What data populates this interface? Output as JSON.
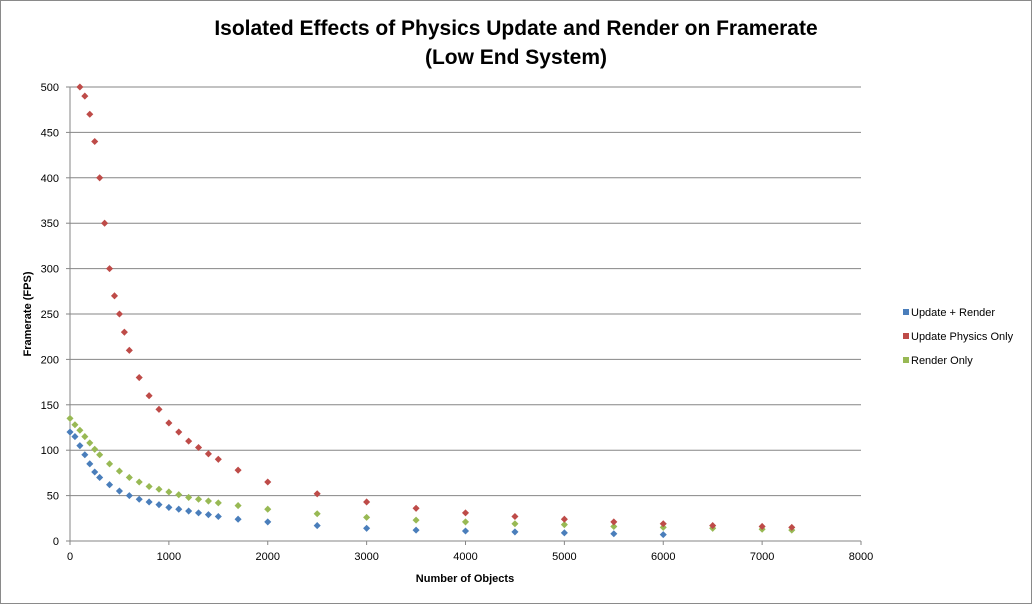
{
  "chart_data": {
    "type": "scatter",
    "title_line1": "Isolated Effects of Physics Update and Render on Framerate",
    "title_line2": "(Low End System)",
    "xlabel": "Number of Objects",
    "ylabel": "Framerate (FPS)",
    "xlim": [
      0,
      8000
    ],
    "ylim": [
      0,
      500
    ],
    "x_ticks": [
      "0",
      "1000",
      "2000",
      "3000",
      "4000",
      "5000",
      "6000",
      "7000",
      "8000"
    ],
    "y_ticks": [
      "0",
      "50",
      "100",
      "150",
      "200",
      "250",
      "300",
      "350",
      "400",
      "450",
      "500"
    ],
    "grid": "horizontal",
    "legend_position": "right",
    "series": [
      {
        "name": "Update + Render",
        "color": "#4a7ebb",
        "x": [
          0,
          50,
          100,
          150,
          200,
          250,
          300,
          400,
          500,
          600,
          700,
          800,
          900,
          1000,
          1100,
          1200,
          1300,
          1400,
          1500,
          1700,
          2000,
          2500,
          3000,
          3500,
          4000,
          4500,
          5000,
          5500,
          6000
        ],
        "y": [
          120,
          115,
          105,
          95,
          85,
          76,
          70,
          62,
          55,
          50,
          46,
          43,
          40,
          37,
          35,
          33,
          31,
          29,
          27,
          24,
          21,
          17,
          14,
          12,
          11,
          10,
          9,
          8,
          7
        ]
      },
      {
        "name": "Update Physics Only",
        "color": "#be4b48",
        "x": [
          100,
          150,
          200,
          250,
          300,
          350,
          400,
          450,
          500,
          550,
          600,
          700,
          800,
          900,
          1000,
          1100,
          1200,
          1300,
          1400,
          1500,
          1700,
          2000,
          2500,
          3000,
          3500,
          4000,
          4500,
          5000,
          5500,
          6000,
          6500,
          7000,
          7300
        ],
        "y": [
          500,
          490,
          470,
          440,
          400,
          350,
          300,
          270,
          250,
          230,
          210,
          180,
          160,
          145,
          130,
          120,
          110,
          103,
          96,
          90,
          78,
          65,
          52,
          43,
          36,
          31,
          27,
          24,
          21,
          19,
          17,
          16,
          15
        ]
      },
      {
        "name": "Render Only",
        "color": "#98b954",
        "x": [
          0,
          50,
          100,
          150,
          200,
          250,
          300,
          400,
          500,
          600,
          700,
          800,
          900,
          1000,
          1100,
          1200,
          1300,
          1400,
          1500,
          1700,
          2000,
          2500,
          3000,
          3500,
          4000,
          4500,
          5000,
          5500,
          6000,
          6500,
          7000,
          7300
        ],
        "y": [
          135,
          128,
          122,
          115,
          108,
          101,
          95,
          85,
          77,
          70,
          65,
          60,
          57,
          54,
          51,
          48,
          46,
          44,
          42,
          39,
          35,
          30,
          26,
          23,
          21,
          19,
          18,
          16,
          15,
          14,
          13,
          12
        ]
      }
    ]
  }
}
